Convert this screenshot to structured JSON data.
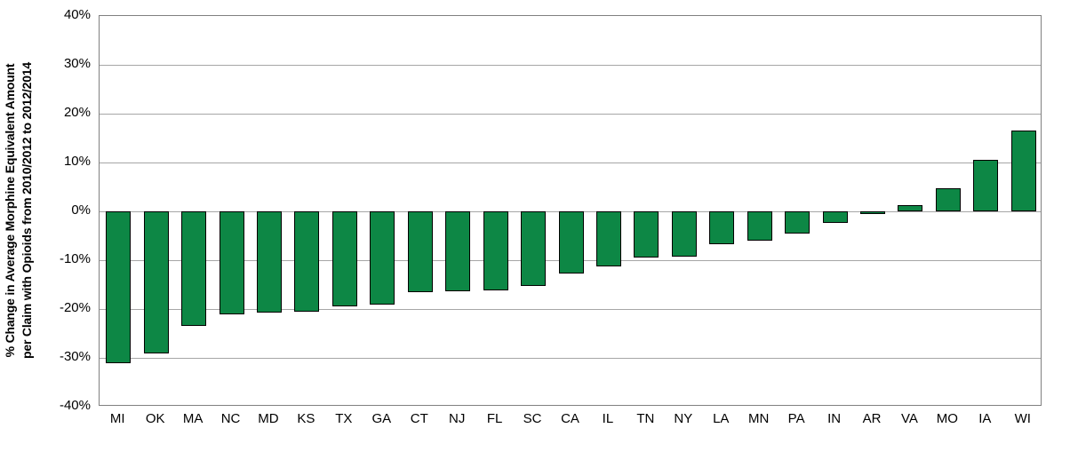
{
  "colors": {
    "bar_fill": "#0d8745",
    "bar_border": "#000000",
    "gridline": "#a6a6a6",
    "plot_border": "#808080",
    "text": "#000000",
    "background": "#ffffff"
  },
  "y_axis": {
    "label_line1": "% Change in Average Morphine Equivalent Amount",
    "label_line2": "per Claim with Opioids from 2010/2012 to 2012/2014",
    "tick_labels": [
      "40%",
      "30%",
      "20%",
      "10%",
      "0%",
      "-10%",
      "-20%",
      "-30%",
      "-40%"
    ]
  },
  "chart_data": {
    "type": "bar",
    "title": "",
    "xlabel": "",
    "ylabel": "% Change in Average Morphine Equivalent Amount per Claim with Opioids from 2010/2012 to 2012/2014",
    "ylim": [
      -40,
      40
    ],
    "ytick_step": 10,
    "grid": true,
    "legend": "none",
    "categories": [
      "MI",
      "OK",
      "MA",
      "NC",
      "MD",
      "KS",
      "TX",
      "GA",
      "CT",
      "NJ",
      "FL",
      "SC",
      "CA",
      "IL",
      "TN",
      "NY",
      "LA",
      "MN",
      "PA",
      "IN",
      "AR",
      "VA",
      "MO",
      "IA",
      "WI"
    ],
    "values": [
      -31,
      -29,
      -23.5,
      -21,
      -20.7,
      -20.5,
      -19.4,
      -19,
      -16.5,
      -16.4,
      -16.2,
      -15.3,
      -12.8,
      -11.3,
      -9.5,
      -9.3,
      -6.8,
      -6,
      -4.5,
      -2.3,
      -0.5,
      1.2,
      4.8,
      10.6,
      16.5
    ]
  }
}
